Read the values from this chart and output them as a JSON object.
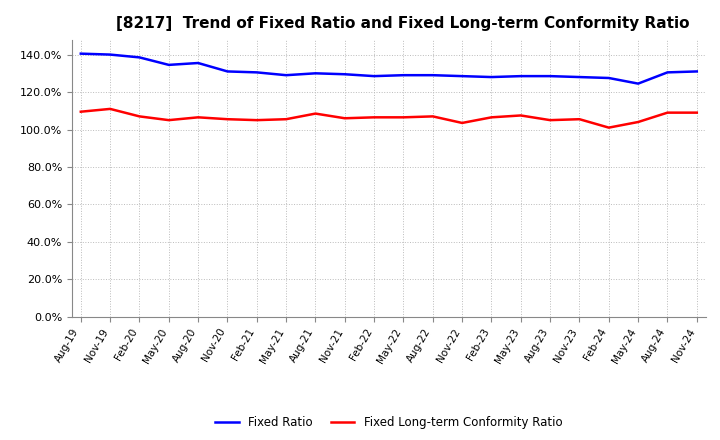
{
  "title": "[8217]  Trend of Fixed Ratio and Fixed Long-term Conformity Ratio",
  "x_labels": [
    "Aug-19",
    "Nov-19",
    "Feb-20",
    "May-20",
    "Aug-20",
    "Nov-20",
    "Feb-21",
    "May-21",
    "Aug-21",
    "Nov-21",
    "Feb-22",
    "May-22",
    "Aug-22",
    "Nov-22",
    "Feb-23",
    "May-23",
    "Aug-23",
    "Nov-23",
    "Feb-24",
    "May-24",
    "Aug-24",
    "Nov-24"
  ],
  "fixed_ratio": [
    140.5,
    140.0,
    138.5,
    134.5,
    135.5,
    131.0,
    130.5,
    129.0,
    130.0,
    129.5,
    128.5,
    129.0,
    129.0,
    128.5,
    128.0,
    128.5,
    128.5,
    128.0,
    127.5,
    124.5,
    130.5,
    131.0
  ],
  "fixed_lt_ratio": [
    109.5,
    111.0,
    107.0,
    105.0,
    106.5,
    105.5,
    105.0,
    105.5,
    108.5,
    106.0,
    106.5,
    106.5,
    107.0,
    103.5,
    106.5,
    107.5,
    105.0,
    105.5,
    101.0,
    104.0,
    109.0,
    109.0
  ],
  "fixed_ratio_color": "#0000ff",
  "fixed_lt_ratio_color": "#ff0000",
  "background_color": "#ffffff",
  "plot_bg_color": "#ffffff",
  "grid_color": "#bbbbbb",
  "ylim": [
    0,
    148
  ],
  "yticks": [
    0,
    20,
    40,
    60,
    80,
    100,
    120,
    140
  ],
  "title_fontsize": 11,
  "legend_labels": [
    "Fixed Ratio",
    "Fixed Long-term Conformity Ratio"
  ]
}
